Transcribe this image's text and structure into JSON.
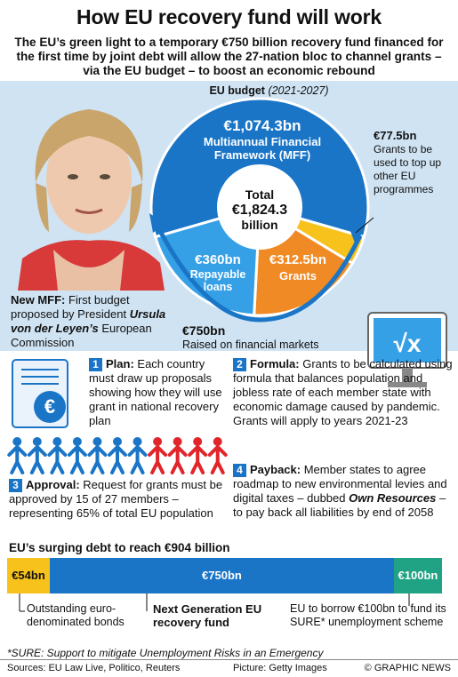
{
  "header": {
    "title": "How EU recovery fund will work",
    "subtitle": "The EU’s green light to a temporary €750 billion recovery fund financed for the first time by joint debt will allow the 27-nation bloc to channel grants – via the EU budget – to boost an economic rebound"
  },
  "budget": {
    "title": "EU budget",
    "period": "(2021-2027)",
    "mff_value": "€1,074.3bn",
    "mff_label_1": "Multiannual Financial",
    "mff_label_2": "Framework (MFF)",
    "total_label": "Total",
    "total_value": "€1,824.3",
    "total_unit": "billion",
    "loans_value": "€360bn",
    "loans_label_1": "Repayable",
    "loans_label_2": "loans",
    "grants_value": "€312.5bn",
    "grants_label": "Grants",
    "topup_value": "€77.5bn",
    "topup_text": "Grants to be used to top up other EU programmes",
    "raised_value": "€750bn",
    "raised_text": "Raised on financial markets"
  },
  "chart_data": [
    {
      "type": "pie",
      "title": "EU budget",
      "subtitle": "(2021-2027)",
      "unit": "€bn",
      "total": 1824.3,
      "slices": [
        {
          "label": "Multiannual Financial Framework (MFF)",
          "value": 1074.3,
          "color": "#1a75c7"
        },
        {
          "label": "Grants to be used to top up other EU programmes",
          "value": 77.5,
          "color": "#f7c21b"
        },
        {
          "label": "Grants",
          "value": 312.5,
          "color": "#f08a24"
        },
        {
          "label": "Repayable loans",
          "value": 360.0,
          "color": "#36a0e6"
        }
      ]
    },
    {
      "type": "bar",
      "orientation": "horizontal-stacked",
      "title": "EU’s surging debt to reach €904 billion",
      "unit": "€bn",
      "segments": [
        {
          "label": "€54bn",
          "value": 54,
          "caption": "Outstanding euro-denominated bonds",
          "color": "#f7c21b"
        },
        {
          "label": "€750bn",
          "value": 750,
          "caption": "Next Generation EU recovery fund",
          "color": "#1a75c7"
        },
        {
          "label": "€100bn",
          "value": 100,
          "caption": "EU to borrow €100bn to fund its SURE* unemployment scheme",
          "color": "#1fa384"
        }
      ]
    }
  ],
  "mff": {
    "lead": "New MFF:",
    "text_1": " First budget proposed by President ",
    "name": "Ursula von der Leyen’s",
    "text_2": " European Commission"
  },
  "steps": {
    "plan": {
      "num": "1",
      "head": "Plan:",
      "text": " Each country must draw up proposals showing how they will use grant in national recovery plan"
    },
    "formula": {
      "num": "2",
      "head": "Formula:",
      "text": " Grants to be calculated using formula that balances population and jobless rate of each member state with economic damage caused by pandemic. Grants will apply to years 2021-23"
    },
    "approval": {
      "num": "3",
      "head": "Approval:",
      "text": " Request for grants must be approved by 15 of 27 members – representing 65% of total EU population"
    },
    "payback": {
      "num": "4",
      "head": "Payback:",
      "text_1": " Member states to agree roadmap to new environmental levies and digital taxes – dubbed ",
      "em": "Own Resources",
      "text_2": " – to pay back all liabilities by end of 2058"
    }
  },
  "icons": {
    "people_blue": 7,
    "people_red": 4,
    "euro_icon": "€",
    "sqrt_icon": "√x"
  },
  "debt": {
    "title": "EU’s surging debt to reach €904 billion",
    "cap_bonds": "Outstanding euro-denominated bonds",
    "cap_ngeu": "Next Generation EU recovery fund",
    "cap_sure": "EU to borrow €100bn to fund its SURE* unemployment scheme"
  },
  "footnote": "*SURE: Support to mitigate Unemployment Risks in an Emergency",
  "footer": {
    "sources": "Sources: EU Law Live, Politico, Reuters",
    "picture": "Picture: Getty Images",
    "credit": "© GRAPHIC NEWS"
  },
  "colors": {
    "blue": "#1a75c7",
    "lightblue": "#36a0e6",
    "orange": "#f08a24",
    "yellow": "#f7c21b",
    "green": "#1fa384",
    "red": "#e0252b",
    "band": "#cfe3f3"
  }
}
